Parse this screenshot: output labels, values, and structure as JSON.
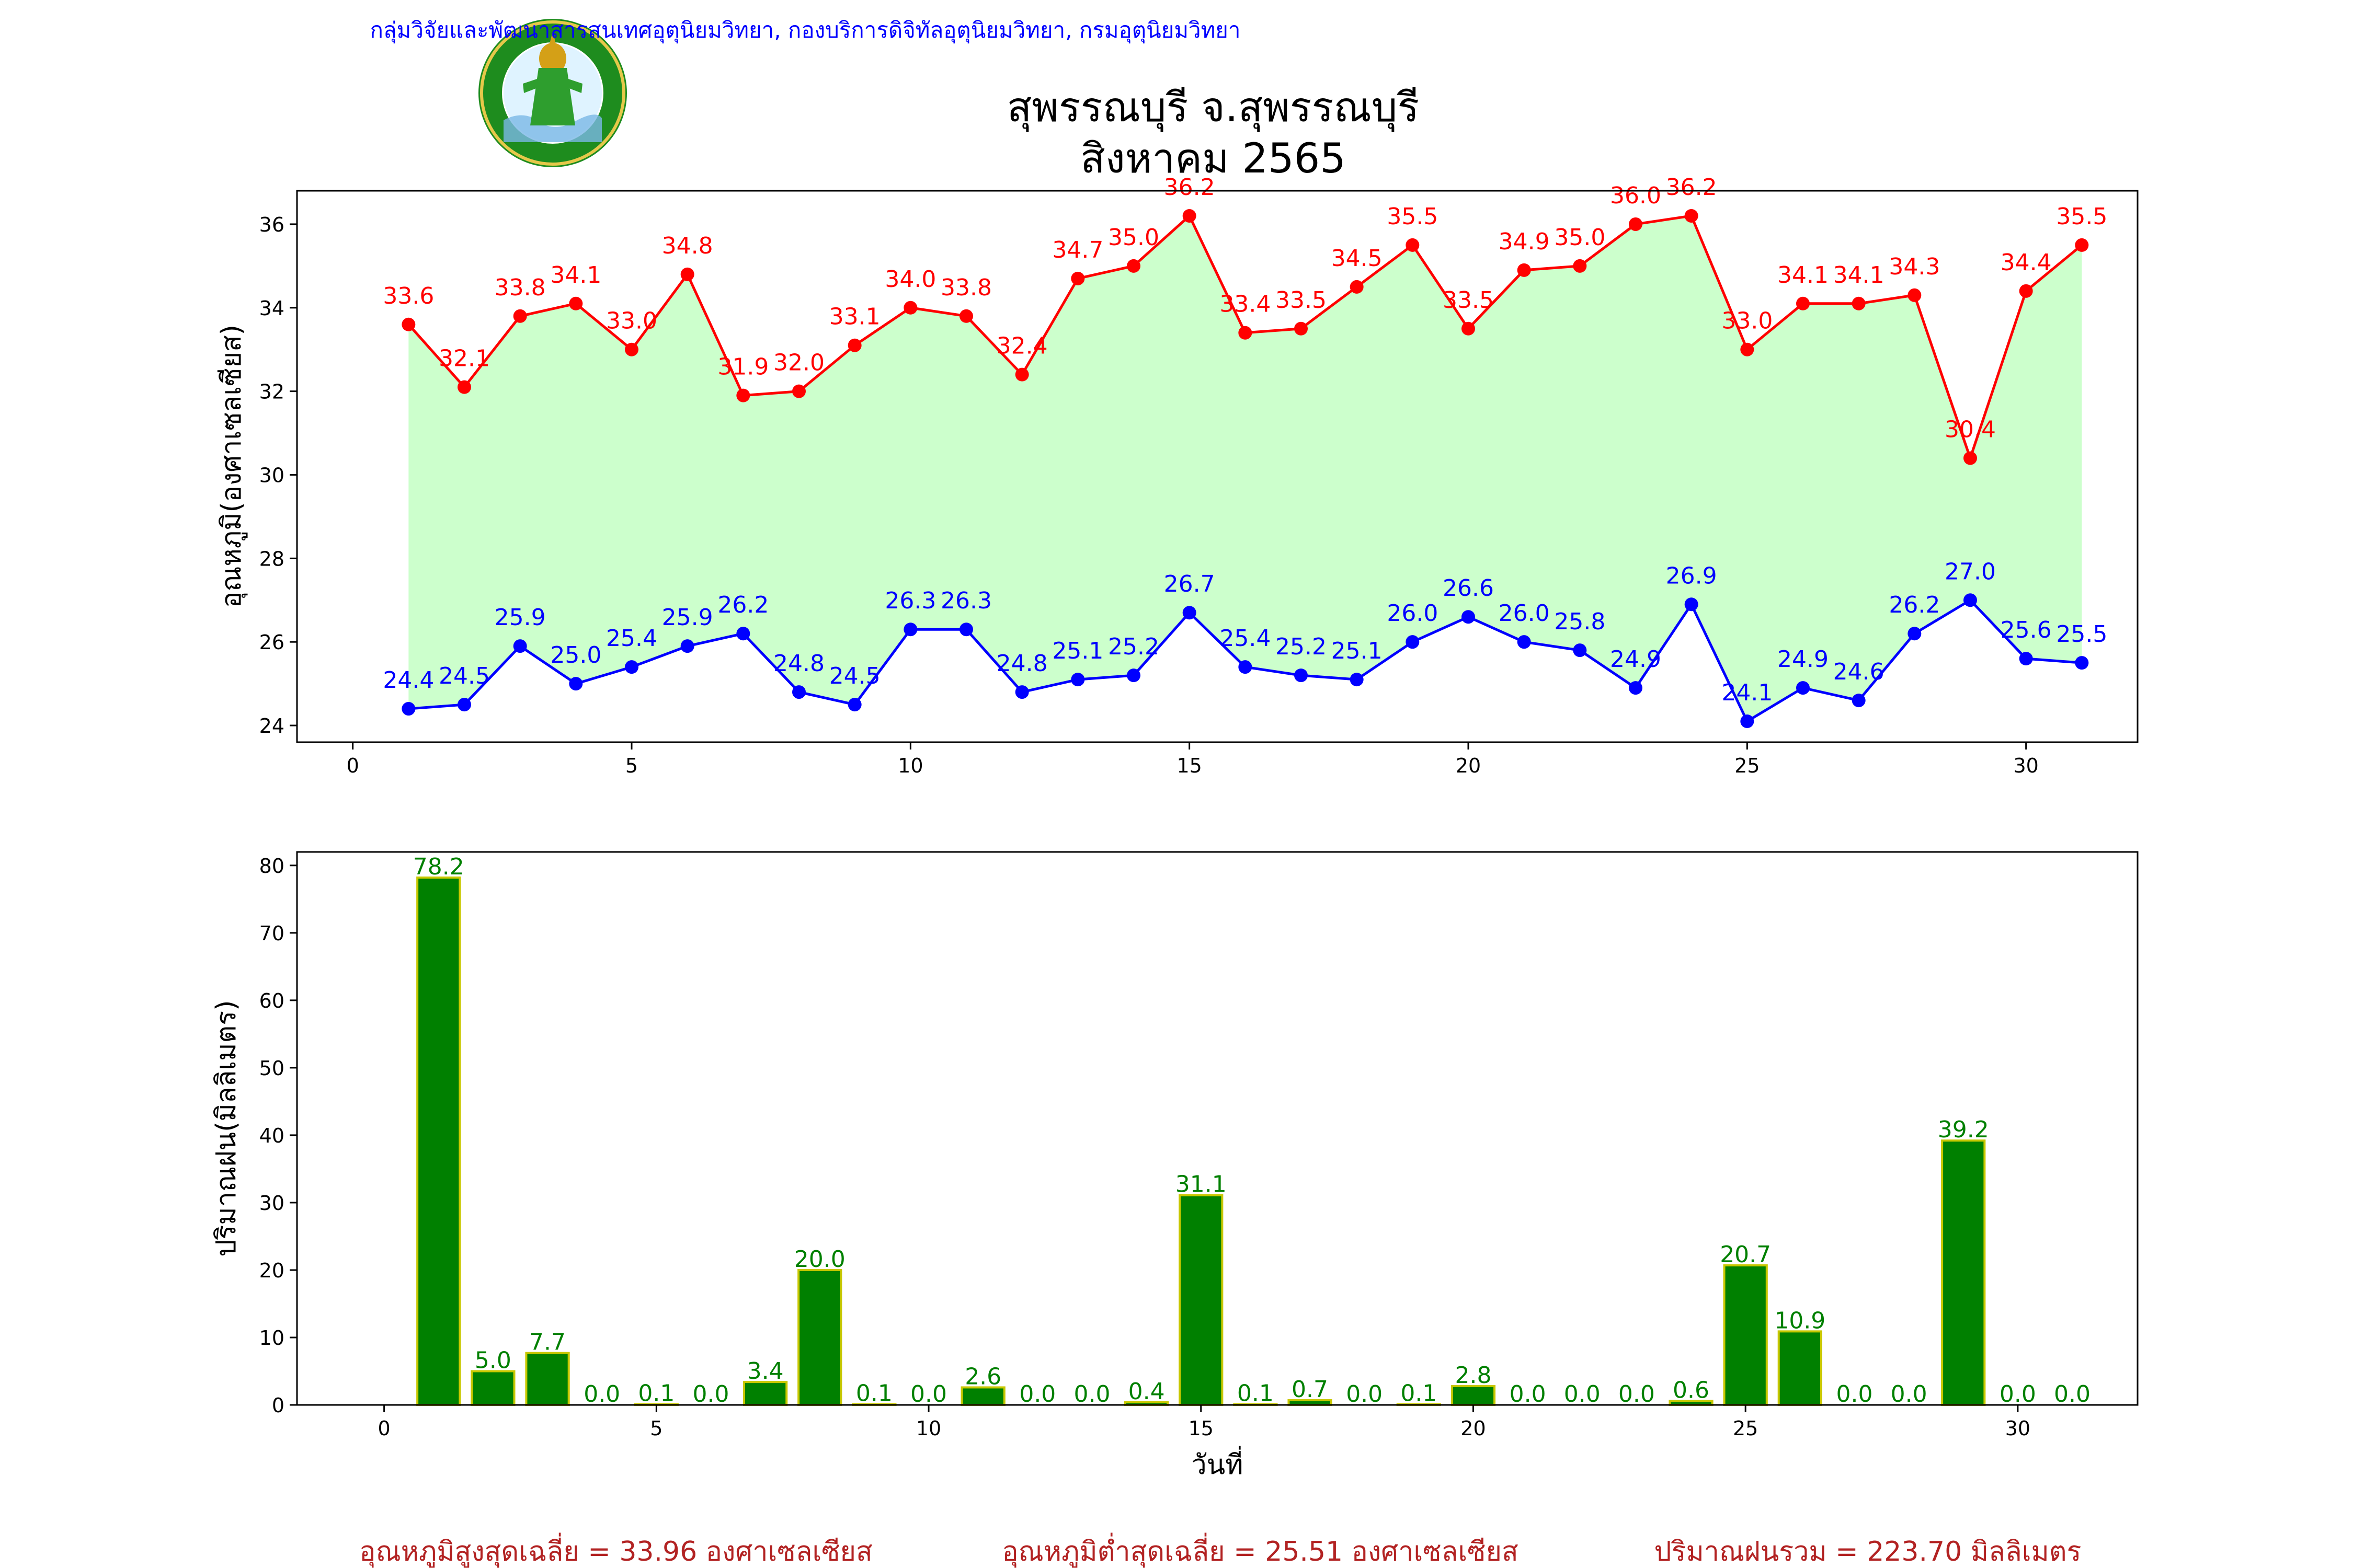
{
  "header": {
    "org_line": "กลุ่มวิจัยและพัฒนาสารสนเทศอุตุนิยมวิทยา, กองบริการดิจิทัลอุตุนิยมวิทยา, กรมอุตุนิยมวิทยา",
    "station": "สุพรรณบุรี จ.สุพรรณบุรี",
    "period": "สิงหาคม 2565",
    "logo_text": "กรมอุตุนิยมวิทยา",
    "logo_text_en": "METEOROLOGICAL DEPARTMENT"
  },
  "colors": {
    "max_line": "#ff0000",
    "min_line": "#0000ff",
    "fill": "#ccffcc",
    "bar": "#008000",
    "bar_edge": "#c8c800",
    "bar_label": "#008000",
    "header_text": "#0000ff",
    "footer_text": "#b22222"
  },
  "chart_data": [
    {
      "type": "line",
      "ylabel": "อุณหภูมิ(องศาเซลเซียส)",
      "xlabel": "",
      "xlim": [
        -1,
        32
      ],
      "ylim": [
        23.6,
        36.8
      ],
      "xticks": [
        0,
        5,
        10,
        15,
        20,
        25,
        30
      ],
      "yticks": [
        24,
        26,
        28,
        30,
        32,
        34,
        36
      ],
      "x": [
        1,
        2,
        3,
        4,
        5,
        6,
        7,
        8,
        9,
        10,
        11,
        12,
        13,
        14,
        15,
        16,
        17,
        18,
        19,
        20,
        21,
        22,
        23,
        24,
        25,
        26,
        27,
        28,
        29,
        30,
        31
      ],
      "series": [
        {
          "key": "max",
          "values": [
            33.6,
            32.1,
            33.8,
            34.1,
            33.0,
            34.8,
            31.9,
            32.0,
            33.1,
            34.0,
            33.8,
            32.4,
            34.7,
            35.0,
            36.2,
            33.4,
            33.5,
            34.5,
            35.5,
            33.5,
            34.9,
            35.0,
            36.0,
            36.2,
            33.0,
            34.1,
            34.1,
            34.3,
            30.4,
            34.4,
            35.5
          ]
        },
        {
          "key": "min",
          "values": [
            24.4,
            24.5,
            25.9,
            25.0,
            25.4,
            25.9,
            26.2,
            24.8,
            24.5,
            26.3,
            26.3,
            24.8,
            25.1,
            25.2,
            26.7,
            25.4,
            25.2,
            25.1,
            26.0,
            26.6,
            26.0,
            25.8,
            24.9,
            26.9,
            24.1,
            24.9,
            24.6,
            26.2,
            27.0,
            25.6,
            25.5
          ]
        }
      ],
      "fill_between": true,
      "grid": false
    },
    {
      "type": "bar",
      "ylabel": "ปริมาณฝน(มิลลิเมตร)",
      "xlabel": "วันที่",
      "xlim": [
        -1.6,
        32.2
      ],
      "ylim": [
        0,
        82
      ],
      "xticks": [
        0,
        5,
        10,
        15,
        20,
        25,
        30
      ],
      "yticks": [
        0,
        10,
        20,
        30,
        40,
        50,
        60,
        70,
        80
      ],
      "x": [
        1,
        2,
        3,
        4,
        5,
        6,
        7,
        8,
        9,
        10,
        11,
        12,
        13,
        14,
        15,
        16,
        17,
        18,
        19,
        20,
        21,
        22,
        23,
        24,
        25,
        26,
        27,
        28,
        29,
        30,
        31
      ],
      "values": [
        78.2,
        5.0,
        7.7,
        0.0,
        0.1,
        0.0,
        3.4,
        20.0,
        0.1,
        0.0,
        2.6,
        0.0,
        0.0,
        0.4,
        31.1,
        0.1,
        0.7,
        0.0,
        0.1,
        2.8,
        0.0,
        0.0,
        0.0,
        0.6,
        20.7,
        10.9,
        0.0,
        0.0,
        39.2,
        0.0,
        0.0
      ],
      "grid": false
    }
  ],
  "footer": {
    "avg_max": "อุณหภูมิสูงสุดเฉลี่ย = 33.96 องศาเซลเซียส",
    "avg_min": "อุณหภูมิต่ำสุดเฉลี่ย = 25.51 องศาเซลเซียส",
    "rain_total": "ปริมาณฝนรวม = 223.70 มิลลิเมตร"
  }
}
